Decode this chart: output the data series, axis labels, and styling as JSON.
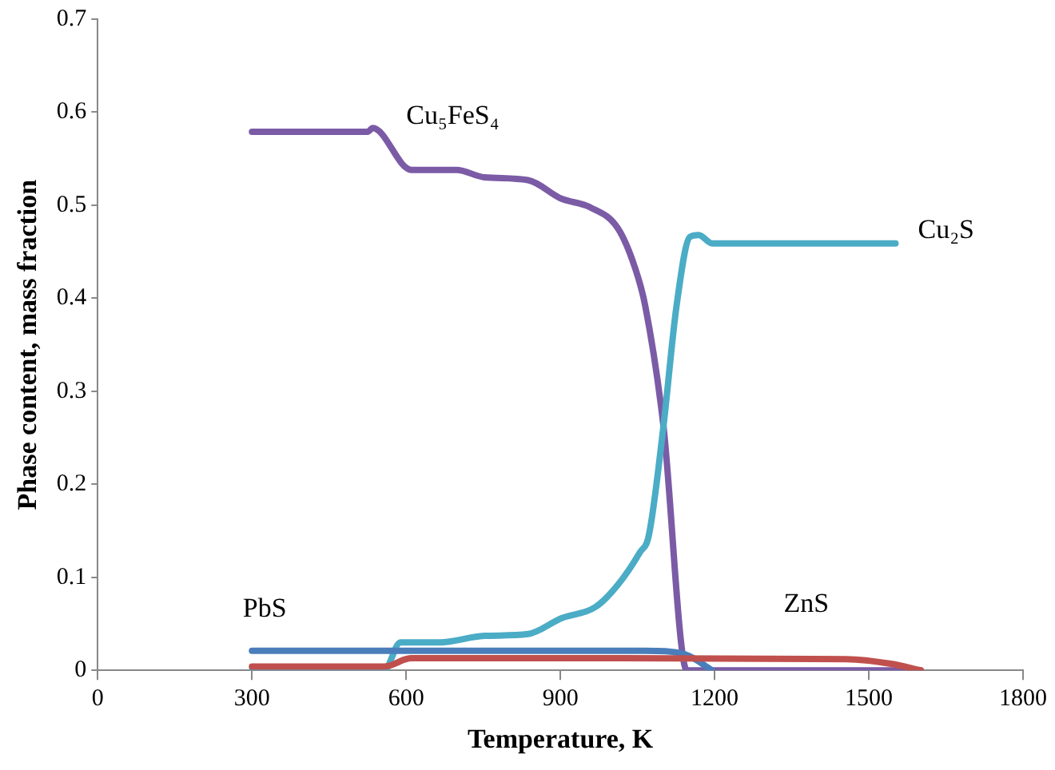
{
  "chart_data": {
    "type": "line",
    "xlabel": "Temperature, K",
    "ylabel": "Phase content, mass fraction",
    "xlim": [
      0,
      1800
    ],
    "xticks": [
      0,
      300,
      600,
      900,
      1200,
      1500,
      1800
    ],
    "ylim": [
      0,
      0.7
    ],
    "yticks": [
      0,
      0.1,
      0.2,
      0.3,
      0.4,
      0.5,
      0.6,
      0.7
    ],
    "grid": false,
    "legend": false,
    "marker": "none",
    "line_style": "solid",
    "series": [
      {
        "name": "ZnS",
        "color": "#c0504d",
        "x": [
          300,
          557,
          610,
          1000,
          1456,
          1543,
          1601
        ],
        "values": [
          0.004,
          0.004,
          0.013,
          0.013,
          0.012,
          0.007,
          0
        ]
      },
      {
        "name": "PbS",
        "color": "#4a7ebb",
        "x": [
          300,
          1065,
          1143,
          1195
        ],
        "values": [
          0.021,
          0.021,
          0.017,
          0
        ]
      },
      {
        "name": "Cu₂S",
        "color": "#4bacc6",
        "x": [
          300,
          557,
          589,
          665,
          752,
          837,
          902,
          968,
          1012,
          1055,
          1072,
          1100,
          1126,
          1152,
          1169,
          1195,
          1552
        ],
        "values": [
          0,
          0,
          0.03,
          0.03,
          0.037,
          0.039,
          0.056,
          0.068,
          0.092,
          0.127,
          0.145,
          0.26,
          0.392,
          0.466,
          0.468,
          0.459,
          0.459
        ]
      },
      {
        "name": "Cu₅FeS₄",
        "color": "#7b5ba6",
        "x": [
          300,
          525,
          535,
          610,
          698,
          752,
          837,
          902,
          957,
          1012,
          1045,
          1065,
          1100,
          1146,
          1601
        ],
        "values": [
          0.579,
          0.579,
          0.583,
          0.538,
          0.538,
          0.53,
          0.527,
          0.507,
          0.498,
          0.475,
          0.433,
          0.392,
          0.265,
          0,
          0
        ]
      }
    ]
  }
}
